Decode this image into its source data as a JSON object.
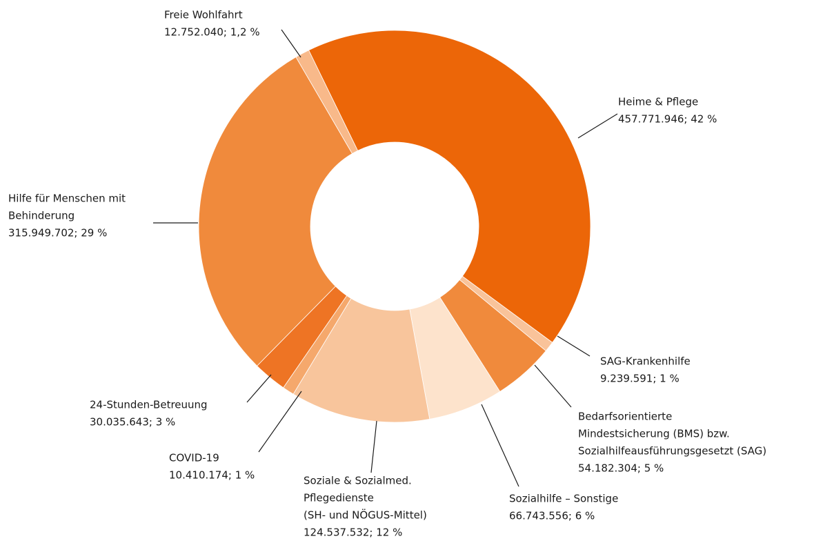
{
  "chart_data": {
    "type": "donut",
    "categories": [
      [
        "Heime & Pflege"
      ],
      [
        "SAG-Krankenhilfe"
      ],
      [
        "Bedarfsorientierte",
        "Mindestsicherung (BMS) bzw.",
        "Sozialhilfeausführungsgesetzt (SAG)"
      ],
      [
        "Sozialhilfe – Sonstige"
      ],
      [
        "Soziale & Sozialmed.",
        "Pflegedienste",
        "(SH- und NÖGUS-Mittel)"
      ],
      [
        "COVID-19"
      ],
      [
        "24-Stunden-Betreuung"
      ],
      [
        "Hilfe für Menschen mit",
        "Behinderung"
      ],
      [
        "Freie Wohlfahrt"
      ]
    ],
    "values": [
      457771946,
      9239591,
      54182304,
      66743556,
      124537532,
      10410174,
      30035643,
      315949702,
      12752040
    ],
    "value_labels": [
      "457.771.946; 42 %",
      "9.239.591; 1 %",
      "54.182.304; 5 %",
      "66.743.556; 6 %",
      "124.537.532; 12 %",
      "10.410.174; 1 %",
      "30.035.643; 3 %",
      "315.949.702; 29 %",
      "12.752.040; 1,2 %"
    ],
    "colors": [
      "#ec6608",
      "#f9c39a",
      "#f08a3c",
      "#fde3cc",
      "#f8c59c",
      "#f5a86c",
      "#ee7424",
      "#f08a3c",
      "#f8b98a"
    ]
  }
}
